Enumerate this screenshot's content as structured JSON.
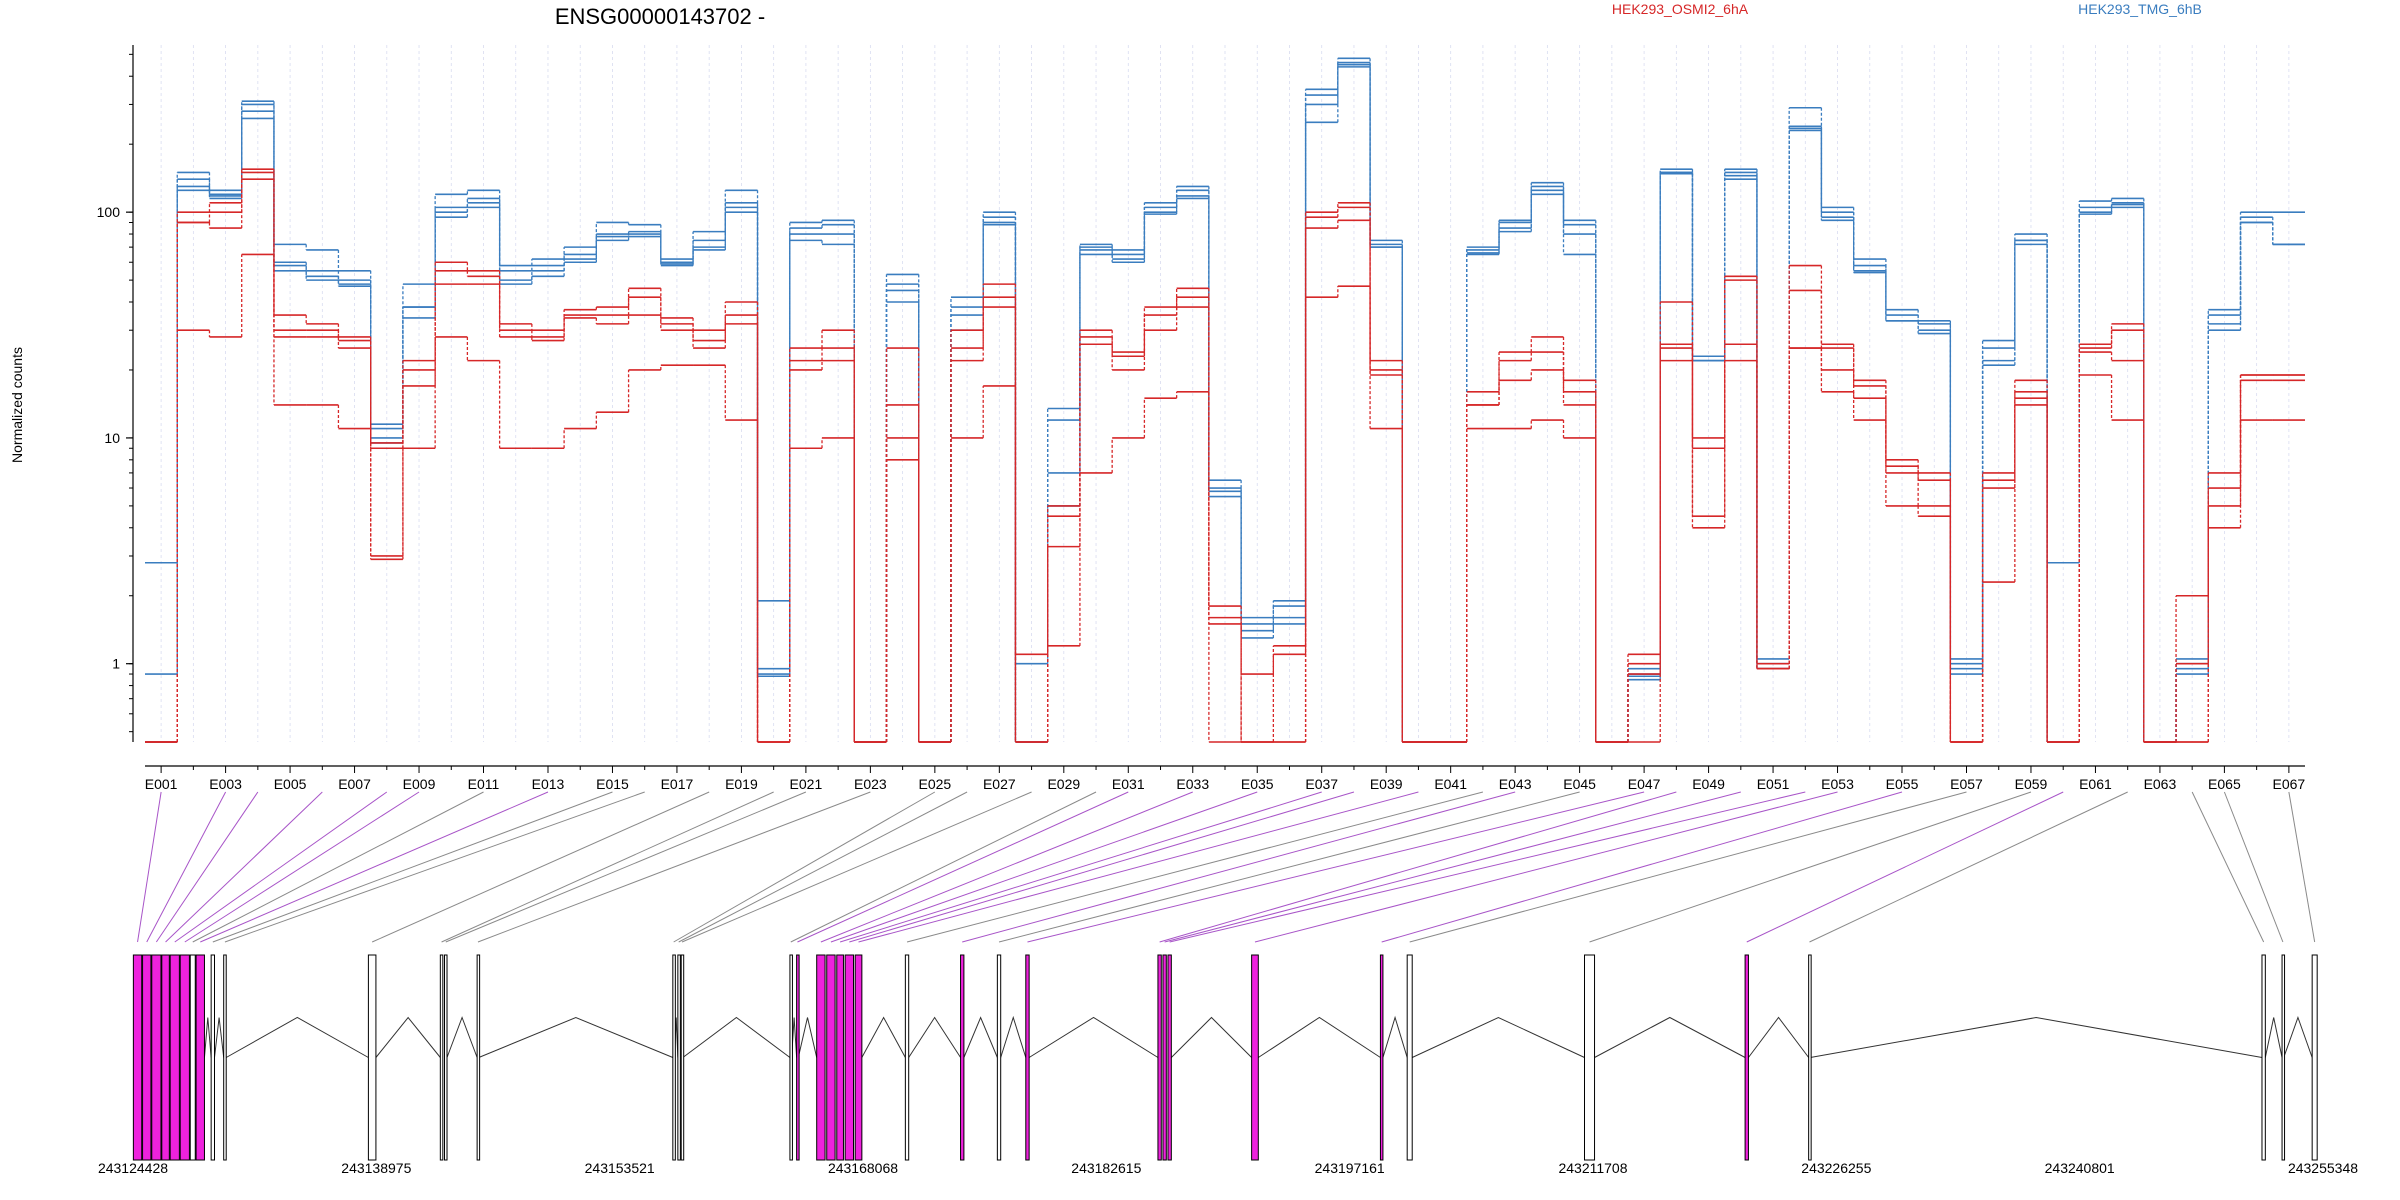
{
  "chart_data": {
    "type": "line",
    "title": "ENSG00000143702 -",
    "ylabel": "Normalized counts",
    "xlabel": "",
    "yscale": "log",
    "ylim": [
      0.45,
      550
    ],
    "yticks": [
      1,
      10,
      100
    ],
    "ytick_labels": [
      "1",
      "10",
      "100"
    ],
    "grid": false,
    "legend_placement": "top-right",
    "exon_tick_labels": [
      "E001",
      "E003",
      "E005",
      "E007",
      "E009",
      "E011",
      "E013",
      "E015",
      "E017",
      "E019",
      "E021",
      "E023",
      "E025",
      "E027",
      "E029",
      "E031",
      "E033",
      "E035",
      "E037",
      "E039",
      "E041",
      "E043",
      "E045",
      "E047",
      "E049",
      "E051",
      "E053",
      "E055",
      "E057",
      "E059",
      "E061",
      "E063",
      "E065",
      "E067"
    ],
    "genomic_axis_labels": [
      "243124428",
      "243138975",
      "243153521",
      "243168068",
      "243182615",
      "243197161",
      "243211708",
      "243226255",
      "243240801",
      "243255348"
    ],
    "genomic_range": [
      243124428,
      243255348
    ],
    "categories": [
      "E001",
      "E002",
      "E003",
      "E004",
      "E005",
      "E006",
      "E007",
      "E008",
      "E009",
      "E010",
      "E011",
      "E012",
      "E013",
      "E014",
      "E015",
      "E016",
      "E017",
      "E018",
      "E019",
      "E020",
      "E021",
      "E022",
      "E023",
      "E024",
      "E025",
      "E026",
      "E027",
      "E028",
      "E029",
      "E030",
      "E031",
      "E032",
      "E033",
      "E034",
      "E035",
      "E036",
      "E037",
      "E038",
      "E039",
      "E040",
      "E041",
      "E042",
      "E043",
      "E044",
      "E045",
      "E046",
      "E047",
      "E048",
      "E049",
      "E050",
      "E051",
      "E052",
      "E053",
      "E054",
      "E055",
      "E056",
      "E057",
      "E058",
      "E059",
      "E060",
      "E061",
      "E062",
      "E063",
      "E064",
      "E065",
      "E066",
      "E067"
    ],
    "groups": [
      {
        "name": "HEK293_OSMI2_6hA",
        "color": "#d62728"
      },
      {
        "name": "HEK293_TMG_6hB",
        "color": "#3a7dbf"
      }
    ],
    "series": [
      {
        "group": "HEK293_TMG_6hB",
        "values": [
          0.9,
          130,
          120,
          300,
          60,
          52,
          50,
          11,
          38,
          100,
          115,
          55,
          58,
          65,
          80,
          82,
          60,
          75,
          110,
          0.95,
          85,
          88,
          0.45,
          48,
          0.45,
          38,
          95,
          0.45,
          12,
          70,
          65,
          105,
          125,
          6,
          1.5,
          1.8,
          330,
          460,
          72,
          0.45,
          0.45,
          68,
          90,
          130,
          88,
          0.45,
          0.9,
          150,
          22,
          150,
          1,
          240,
          100,
          58,
          35,
          32,
          1,
          25,
          75,
          0.45,
          105,
          110,
          0.45,
          1,
          35,
          95,
          72
        ]
      },
      {
        "group": "HEK293_TMG_6hB",
        "values": [
          2.8,
          150,
          125,
          310,
          72,
          68,
          55,
          11.5,
          48,
          120,
          125,
          58,
          62,
          70,
          90,
          88,
          62,
          82,
          125,
          1.9,
          90,
          92,
          0.45,
          53,
          0.45,
          42,
          100,
          0.45,
          13.5,
          72,
          68,
          110,
          130,
          6.5,
          1.6,
          1.9,
          350,
          480,
          75,
          0.45,
          0.45,
          70,
          92,
          135,
          92,
          0.45,
          0.95,
          155,
          23,
          155,
          1.05,
          290,
          105,
          62,
          37,
          33,
          1.05,
          27,
          80,
          0.45,
          112,
          115,
          0.45,
          1.05,
          37,
          100,
          100
        ]
      },
      {
        "group": "HEK293_TMG_6hB",
        "values": [
          0.45,
          140,
          115,
          280,
          55,
          50,
          48,
          10,
          34,
          95,
          105,
          50,
          55,
          62,
          78,
          78,
          58,
          70,
          100,
          0.9,
          75,
          72,
          0.45,
          45,
          0.45,
          30,
          90,
          1,
          5,
          68,
          60,
          100,
          118,
          5.8,
          1.4,
          1.6,
          300,
          440,
          70,
          0.45,
          0.45,
          66,
          85,
          125,
          80,
          0.45,
          0.88,
          148,
          22,
          145,
          0.95,
          230,
          95,
          54,
          33,
          30,
          0.95,
          22,
          72,
          2.8,
          98,
          105,
          0.45,
          0.95,
          30,
          90,
          72
        ]
      },
      {
        "group": "HEK293_TMG_6hB",
        "values": [
          0.45,
          125,
          118,
          260,
          58,
          55,
          47,
          9.5,
          38,
          105,
          110,
          48,
          52,
          60,
          75,
          80,
          59,
          68,
          105,
          0.88,
          80,
          80,
          0.45,
          40,
          0.45,
          35,
          88,
          0.45,
          7,
          65,
          62,
          98,
          115,
          5.5,
          1.3,
          1.5,
          250,
          450,
          70,
          0.45,
          0.45,
          65,
          82,
          120,
          65,
          0.45,
          0.85,
          150,
          22,
          140,
          0.95,
          235,
          92,
          55,
          33,
          29,
          0.9,
          21,
          75,
          0.45,
          100,
          108,
          0.45,
          0.9,
          32,
          90,
          72
        ]
      },
      {
        "group": "HEK293_OSMI2_6hA",
        "values": [
          0.45,
          90,
          85,
          150,
          35,
          32,
          28,
          9,
          22,
          60,
          55,
          30,
          28,
          37,
          38,
          46,
          32,
          25,
          40,
          0.45,
          25,
          30,
          0.45,
          25,
          0.45,
          30,
          48,
          0.45,
          5,
          28,
          23,
          38,
          46,
          1.8,
          0.45,
          1.2,
          100,
          110,
          22,
          0.45,
          0.45,
          14,
          24,
          28,
          18,
          0.45,
          1.1,
          40,
          10,
          52,
          1,
          58,
          26,
          18,
          8,
          7,
          0.45,
          7,
          18,
          0.45,
          26,
          32,
          0.45,
          2,
          7,
          19,
          19
        ]
      },
      {
        "group": "HEK293_OSMI2_6hA",
        "values": [
          0.45,
          100,
          110,
          155,
          30,
          30,
          27,
          9.5,
          20,
          55,
          52,
          32,
          30,
          35,
          35,
          42,
          34,
          30,
          35,
          0.45,
          22,
          25,
          0.45,
          14,
          0.45,
          25,
          42,
          0.45,
          4.5,
          30,
          24,
          35,
          42,
          1.5,
          0.9,
          1.1,
          95,
          105,
          20,
          0.45,
          0.45,
          16,
          22,
          24,
          16,
          0.45,
          1,
          25,
          9,
          50,
          0.95,
          45,
          25,
          17,
          7.5,
          6.5,
          0.45,
          6.5,
          16,
          0.45,
          25,
          30,
          0.45,
          1,
          6,
          19,
          19
        ]
      },
      {
        "group": "HEK293_OSMI2_6hA",
        "values": [
          0.45,
          30,
          28,
          65,
          14,
          14,
          11,
          3,
          9,
          28,
          22,
          9,
          9,
          11,
          13,
          20,
          21,
          21,
          12,
          0.45,
          9,
          10,
          0.45,
          8,
          0.45,
          10,
          17,
          1.1,
          3.3,
          7,
          10,
          15,
          16,
          0.45,
          0.45,
          0.45,
          42,
          47,
          11,
          0.45,
          0.45,
          11,
          11,
          12,
          10,
          0.45,
          0.45,
          26,
          4,
          26,
          0.95,
          25,
          20,
          12,
          5,
          4.5,
          0.45,
          2.3,
          14,
          0.45,
          19,
          12,
          0.45,
          0.45,
          4,
          12,
          12
        ]
      },
      {
        "group": "HEK293_OSMI2_6hA",
        "values": [
          0.45,
          90,
          100,
          140,
          28,
          28,
          25,
          2.9,
          17,
          48,
          48,
          28,
          27,
          34,
          32,
          35,
          30,
          27,
          32,
          0.45,
          20,
          22,
          0.45,
          10,
          0.45,
          22,
          38,
          0.45,
          1.2,
          26,
          20,
          30,
          38,
          1.6,
          0.45,
          0.45,
          85,
          92,
          19,
          0.45,
          0.45,
          14,
          18,
          20,
          14,
          0.45,
          0.9,
          22,
          4.5,
          22,
          0.95,
          25,
          16,
          15,
          7,
          5,
          0.45,
          6,
          15,
          0.45,
          24,
          22,
          0.45,
          0.45,
          5,
          18,
          18
        ]
      }
    ],
    "gene_model": {
      "exons_genomic": [
        [
          243124450,
          243124950
        ],
        [
          243125000,
          243125500
        ],
        [
          243125550,
          243126100
        ],
        [
          243126150,
          243126600
        ],
        [
          243126650,
          243127200
        ],
        [
          243127250,
          243127800
        ],
        [
          243127850,
          243128150
        ],
        [
          243128200,
          243128700
        ],
        [
          243129100,
          243129300
        ],
        [
          243129850,
          243130000
        ],
        [
          243138500,
          243138950
        ],
        [
          243142800,
          243142950
        ],
        [
          243143050,
          243143200
        ],
        [
          243145000,
          243145100
        ],
        [
          243156700,
          243156800
        ],
        [
          243157000,
          243157100
        ],
        [
          243157200,
          243157300
        ],
        [
          243163700,
          243163800
        ],
        [
          243164100,
          243164200
        ],
        [
          243165300,
          243165800
        ],
        [
          243165900,
          243166400
        ],
        [
          243166500,
          243166900
        ],
        [
          243167000,
          243167500
        ],
        [
          243167600,
          243168000
        ],
        [
          243170600,
          243170800
        ],
        [
          243173900,
          243174100
        ],
        [
          243176100,
          243176300
        ],
        [
          243177800,
          243178000
        ],
        [
          243185700,
          243185900
        ],
        [
          243186000,
          243186200
        ],
        [
          243186300,
          243186500
        ],
        [
          243191300,
          243191700
        ],
        [
          243199000,
          243199150
        ],
        [
          243200600,
          243200900
        ],
        [
          243211200,
          243211800
        ],
        [
          243220800,
          243221000
        ],
        [
          243224600,
          243224700
        ],
        [
          243251700,
          243251900
        ],
        [
          243252900,
          243253000
        ],
        [
          243254700,
          243255000
        ]
      ],
      "highlighted_exons": [
        0,
        1,
        2,
        3,
        4,
        5,
        7,
        18,
        19,
        20,
        21,
        22,
        23,
        25,
        27,
        28,
        29,
        30,
        31,
        32,
        35
      ]
    }
  }
}
